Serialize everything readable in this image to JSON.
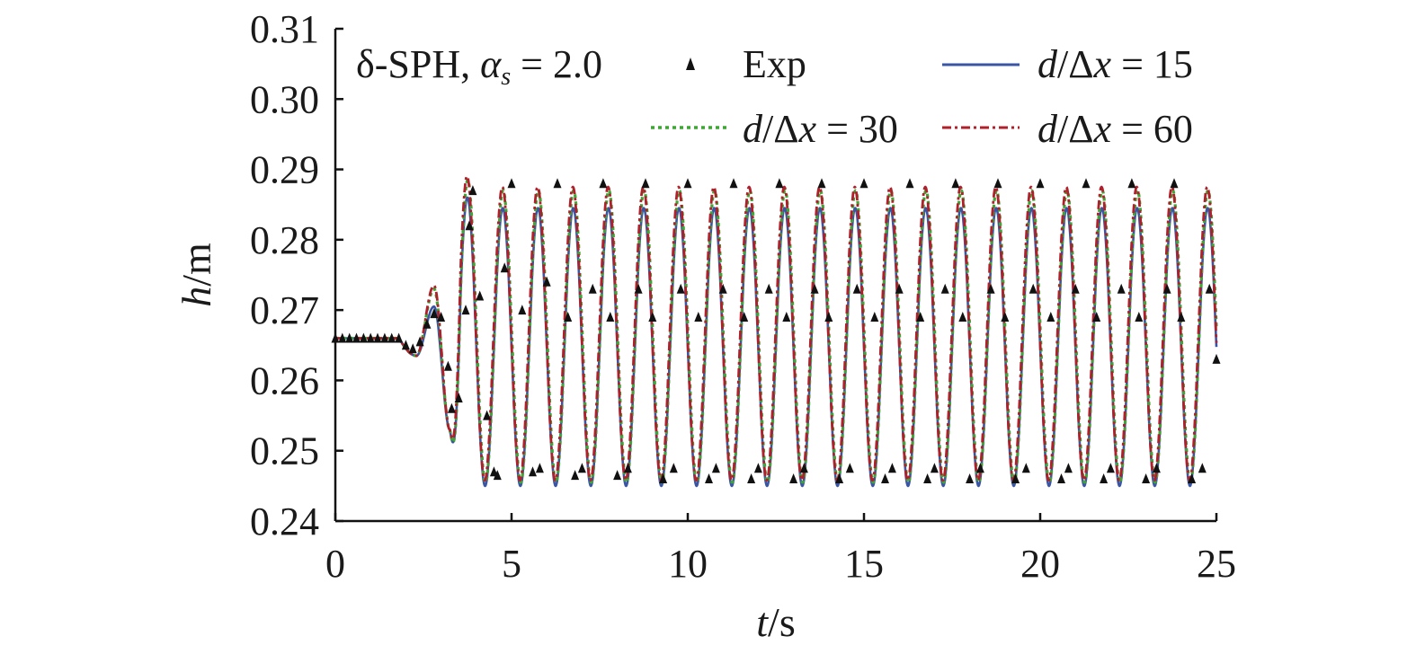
{
  "chart_data": {
    "type": "line",
    "title": "",
    "annotation": "δ-SPH, α_s = 2.0",
    "annotation_parts": {
      "prefix": "δ-SPH, ",
      "symbol": "α",
      "subscript": "s",
      "suffix": " = 2.0"
    },
    "xlabel": {
      "var": "t",
      "unit": "/s"
    },
    "ylabel": {
      "var": "h",
      "unit": "/m"
    },
    "xlim": [
      0,
      25
    ],
    "ylim": [
      0.24,
      0.31
    ],
    "xticks": [
      0,
      5,
      10,
      15,
      20,
      25
    ],
    "yticks": [
      0.24,
      0.25,
      0.26,
      0.27,
      0.28,
      0.29,
      0.3,
      0.31
    ],
    "ytick_labels": [
      "0.24",
      "0.25",
      "0.26",
      "0.27",
      "0.28",
      "0.29",
      "0.30",
      "0.31"
    ],
    "grid": false,
    "legend_position": "top",
    "wave_description": {
      "still_level": 0.266,
      "quiet_until": 1.8,
      "period": 1.0,
      "steady_crest": 0.287,
      "steady_trough": 0.2455,
      "first_crest": {
        "t": 2.8,
        "h": 0.273
      },
      "first_trough": {
        "t": 3.2,
        "h": 0.253
      }
    },
    "series": [
      {
        "name": "Exp",
        "name_parts": [
          "Exp"
        ],
        "style": "triangle-markers",
        "color": "#111111",
        "x": [
          0.0,
          0.2,
          0.4,
          0.6,
          0.8,
          1.0,
          1.2,
          1.4,
          1.6,
          1.8,
          2.0,
          2.2,
          2.4,
          2.6,
          2.8,
          3.0,
          3.2,
          3.3,
          3.5,
          3.7,
          3.8,
          3.9,
          4.1,
          4.3,
          4.5,
          4.6,
          4.8,
          5.0,
          5.3,
          5.6,
          5.8,
          6.0,
          6.3,
          6.6,
          6.8,
          7.0,
          7.3,
          7.6,
          7.8,
          8.0,
          8.3,
          8.6,
          8.8,
          9.0,
          9.3,
          9.6,
          9.8,
          10.0,
          10.3,
          10.6,
          10.8,
          11.0,
          11.3,
          11.6,
          11.8,
          12.0,
          12.3,
          12.6,
          12.8,
          13.0,
          13.3,
          13.6,
          13.8,
          14.0,
          14.3,
          14.6,
          14.8,
          15.0,
          15.3,
          15.6,
          15.8,
          16.0,
          16.3,
          16.6,
          16.8,
          17.0,
          17.3,
          17.6,
          17.8,
          18.0,
          18.3,
          18.6,
          18.8,
          19.0,
          19.3,
          19.6,
          19.8,
          20.0,
          20.3,
          20.6,
          20.8,
          21.0,
          21.3,
          21.6,
          21.8,
          22.0,
          22.3,
          22.6,
          22.8,
          23.0,
          23.3,
          23.6,
          23.8,
          24.0,
          24.3,
          24.6,
          24.8,
          25.0
        ],
        "y": [
          0.266,
          0.266,
          0.266,
          0.266,
          0.266,
          0.266,
          0.266,
          0.266,
          0.266,
          0.266,
          0.265,
          0.2645,
          0.2655,
          0.268,
          0.2695,
          0.269,
          0.262,
          0.256,
          0.2575,
          0.27,
          0.282,
          0.287,
          0.272,
          0.255,
          0.247,
          0.2465,
          0.276,
          0.288,
          0.27,
          0.247,
          0.2475,
          0.274,
          0.288,
          0.269,
          0.2465,
          0.2475,
          0.273,
          0.288,
          0.269,
          0.2465,
          0.2475,
          0.273,
          0.288,
          0.269,
          0.246,
          0.2475,
          0.273,
          0.288,
          0.269,
          0.246,
          0.2475,
          0.273,
          0.288,
          0.269,
          0.246,
          0.2475,
          0.273,
          0.288,
          0.269,
          0.246,
          0.2475,
          0.273,
          0.288,
          0.269,
          0.246,
          0.2475,
          0.273,
          0.288,
          0.269,
          0.246,
          0.2475,
          0.273,
          0.288,
          0.269,
          0.246,
          0.2475,
          0.273,
          0.288,
          0.269,
          0.246,
          0.2475,
          0.273,
          0.288,
          0.269,
          0.246,
          0.2475,
          0.273,
          0.288,
          0.269,
          0.246,
          0.2475,
          0.273,
          0.288,
          0.269,
          0.246,
          0.2475,
          0.273,
          0.288,
          0.269,
          0.246,
          0.2475,
          0.273,
          0.288,
          0.269,
          0.246,
          0.2475,
          0.273,
          0.263
        ]
      },
      {
        "name": "d/Δx = 15",
        "name_parts": [
          "d",
          "/Δ",
          "x",
          " = 15"
        ],
        "style": "solid",
        "color": "#3a55a4",
        "crest_offset": -0.0025,
        "trough_offset": -0.0005,
        "phase_offset": 0.0
      },
      {
        "name": "d/Δx = 30",
        "name_parts": [
          "d",
          "/Δ",
          "x",
          " = 30"
        ],
        "style": "dotted",
        "color": "#3fa535",
        "crest_offset": 0.0,
        "trough_offset": 0.0,
        "phase_offset": -0.01
      },
      {
        "name": "d/Δx = 60",
        "name_parts": [
          "d",
          "/Δ",
          "x",
          " = 60"
        ],
        "style": "dash-dot",
        "color": "#b0202a",
        "crest_offset": 0.0005,
        "trough_offset": 0.0003,
        "phase_offset": 0.01
      }
    ]
  }
}
